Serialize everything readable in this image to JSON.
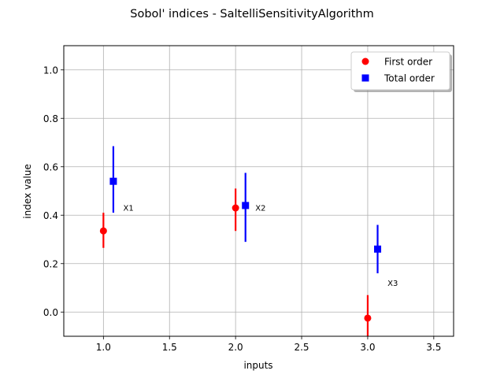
{
  "chart_data": {
    "type": "scatter",
    "title": "Sobol' indices - SaltelliSensitivityAlgorithm",
    "xlabel": "inputs",
    "ylabel": "index value",
    "xlim": [
      0.7,
      3.65
    ],
    "ylim": [
      -0.1,
      1.1
    ],
    "x_ticks": [
      1.0,
      1.5,
      2.0,
      2.5,
      3.0,
      3.5
    ],
    "x_tick_labels": [
      "1.0",
      "1.5",
      "2.0",
      "2.5",
      "3.0",
      "3.5"
    ],
    "y_ticks": [
      0.0,
      0.2,
      0.4,
      0.6,
      0.8,
      1.0
    ],
    "y_tick_labels": [
      "0.0",
      "0.2",
      "0.4",
      "0.6",
      "0.8",
      "1.0"
    ],
    "grid": true,
    "legend_position": "top-right",
    "series": [
      {
        "name": "First order",
        "marker": "circle",
        "color": "#ff0000",
        "x": [
          1.0,
          2.0,
          3.0
        ],
        "y": [
          0.335,
          0.43,
          -0.025
        ],
        "err_low": [
          0.265,
          0.335,
          -0.1
        ],
        "err_high": [
          0.41,
          0.51,
          0.07
        ]
      },
      {
        "name": "Total order",
        "marker": "square",
        "color": "#0000ff",
        "x": [
          1.075,
          2.075,
          3.075
        ],
        "y": [
          0.54,
          0.44,
          0.26
        ],
        "err_low": [
          0.41,
          0.29,
          0.16
        ],
        "err_high": [
          0.685,
          0.575,
          0.36
        ]
      }
    ],
    "annotations": [
      {
        "text": "X1",
        "x": 1.15,
        "y": 0.43
      },
      {
        "text": "X2",
        "x": 2.15,
        "y": 0.43
      },
      {
        "text": "X3",
        "x": 3.15,
        "y": 0.12
      }
    ]
  }
}
